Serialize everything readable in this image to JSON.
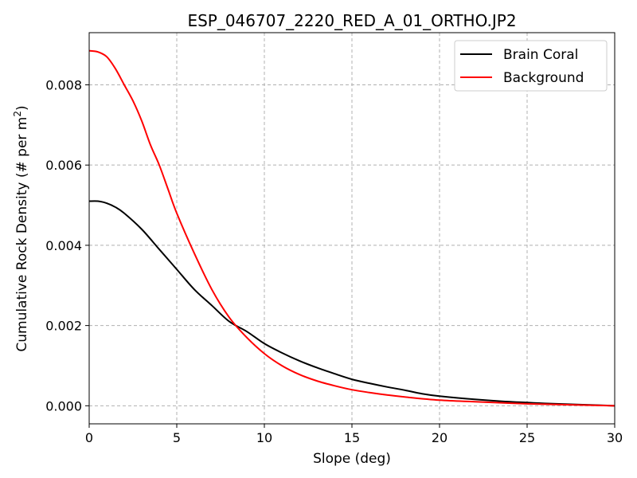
{
  "chart_data": {
    "type": "line",
    "title": "ESP_046707_2220_RED_A_01_ORTHO.JP2",
    "xlabel": "Slope (deg)",
    "ylabel_main": "Cumulative Rock Density (# per m",
    "ylabel_sup": "2",
    "ylabel_tail": ")",
    "xlim": [
      0,
      30
    ],
    "ylim": [
      -0.00045,
      0.0093
    ],
    "xticks": [
      0,
      5,
      10,
      15,
      20,
      25,
      30
    ],
    "xtick_labels": [
      "0",
      "5",
      "10",
      "15",
      "20",
      "25",
      "30"
    ],
    "yticks": [
      0,
      0.002,
      0.004,
      0.006,
      0.008
    ],
    "ytick_labels": [
      "0.000",
      "0.002",
      "0.004",
      "0.006",
      "0.008"
    ],
    "grid": true,
    "legend_position": "top-right",
    "series": [
      {
        "name": "Brain Coral",
        "color": "#000000",
        "x": [
          0,
          0.5,
          1,
          1.5,
          2,
          3,
          4,
          5,
          6,
          7,
          8,
          9,
          10,
          11,
          12,
          13,
          14,
          15,
          16,
          17,
          18,
          19,
          20,
          22,
          24,
          26,
          28,
          30
        ],
        "y": [
          0.0051,
          0.0051,
          0.00505,
          0.00495,
          0.0048,
          0.0044,
          0.0039,
          0.0034,
          0.0029,
          0.0025,
          0.0021,
          0.00185,
          0.00155,
          0.00132,
          0.00112,
          0.00095,
          0.0008,
          0.00066,
          0.00056,
          0.00047,
          0.00039,
          0.0003,
          0.00024,
          0.00016,
          0.0001,
          6e-05,
          3e-05,
          0.0
        ]
      },
      {
        "name": "Background",
        "color": "#ff0000",
        "x": [
          0,
          0.5,
          1,
          1.5,
          2,
          2.5,
          3,
          3.5,
          4,
          4.5,
          5,
          6,
          7,
          8,
          9,
          10,
          11,
          12,
          13,
          14,
          15,
          16,
          17,
          18,
          20,
          22,
          25,
          28,
          30
        ],
        "y": [
          0.00885,
          0.00882,
          0.0087,
          0.0084,
          0.008,
          0.0076,
          0.0071,
          0.0065,
          0.006,
          0.0054,
          0.0048,
          0.0038,
          0.0029,
          0.0022,
          0.0017,
          0.0013,
          0.001,
          0.00078,
          0.00062,
          0.0005,
          0.0004,
          0.00033,
          0.00027,
          0.00022,
          0.00014,
          0.0001,
          5e-05,
          2e-05,
          0.0
        ]
      }
    ]
  }
}
